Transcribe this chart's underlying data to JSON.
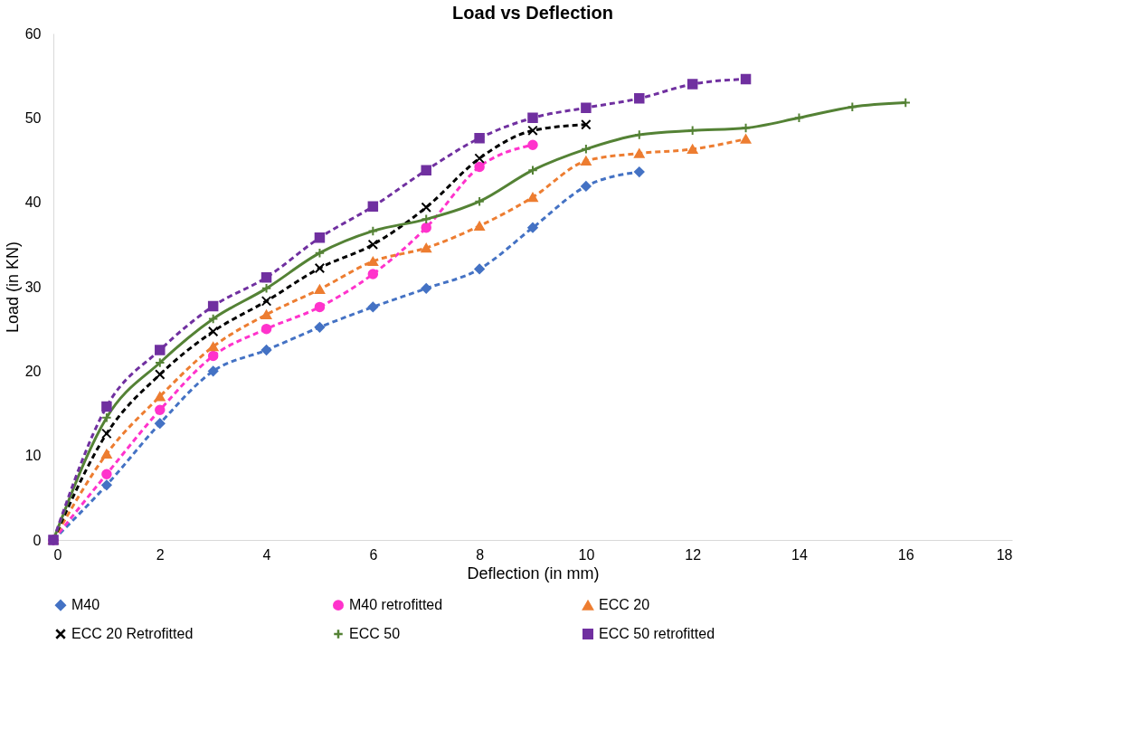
{
  "chart_data": {
    "type": "line",
    "title": "Load vs Deflection",
    "xlabel": "Deflection (in mm)",
    "ylabel": "Load (in KN)",
    "xlim": [
      0,
      18
    ],
    "xticks": [
      0,
      2,
      4,
      6,
      8,
      10,
      12,
      14,
      16,
      18
    ],
    "ylim": [
      0,
      60
    ],
    "yticks": [
      0,
      10,
      20,
      30,
      40,
      50,
      60
    ],
    "grid": false,
    "legend": "bottom",
    "series": [
      {
        "name": "M40",
        "color": "#4472c4",
        "marker": "diamond",
        "line_style": "dashed",
        "x": [
          0,
          1,
          2,
          3,
          4,
          5,
          6,
          7,
          8,
          9,
          10,
          11
        ],
        "values": [
          0,
          6.5,
          13.8,
          20,
          22.5,
          25.2,
          27.6,
          29.8,
          32.1,
          37,
          41.9,
          43.6
        ]
      },
      {
        "name": "M40 retrofitted",
        "color": "#ff33cc",
        "marker": "circle",
        "line_style": "dashed",
        "x": [
          0,
          1,
          2,
          3,
          4,
          5,
          6,
          7,
          8,
          9
        ],
        "values": [
          0,
          7.8,
          15.4,
          21.8,
          25,
          27.6,
          31.5,
          37,
          44.2,
          46.8
        ]
      },
      {
        "name": "ECC 20",
        "color": "#ed7d31",
        "marker": "triangle",
        "line_style": "dashed",
        "x": [
          0,
          1,
          2,
          3,
          4,
          5,
          6,
          7,
          8,
          9,
          10,
          11,
          12,
          13
        ],
        "values": [
          0,
          10.2,
          17,
          22.9,
          26.7,
          29.7,
          33,
          34.6,
          37.2,
          40.6,
          44.9,
          45.8,
          46.3,
          47.5
        ]
      },
      {
        "name": "ECC 20 Retrofitted",
        "color": "#000000",
        "marker": "cross",
        "line_style": "dashed",
        "x": [
          0,
          1,
          2,
          3,
          4,
          5,
          6,
          7,
          8,
          9,
          10
        ],
        "values": [
          0,
          12.6,
          19.6,
          24.7,
          28.3,
          32.2,
          35,
          39.4,
          45.2,
          48.5,
          49.2
        ]
      },
      {
        "name": "ECC 50",
        "color": "#548235",
        "marker": "plus",
        "line_style": "solid",
        "x": [
          0,
          1,
          2,
          3,
          4,
          5,
          6,
          7,
          8,
          9,
          10,
          11,
          12,
          13,
          14,
          15,
          16
        ],
        "values": [
          0,
          14.5,
          21,
          26.2,
          29.8,
          34,
          36.6,
          38,
          40.1,
          43.8,
          46.3,
          48,
          48.5,
          48.8,
          50,
          51.3,
          51.8
        ]
      },
      {
        "name": "ECC 50 retrofitted",
        "color": "#7030a0",
        "marker": "square",
        "line_style": "dashed",
        "x": [
          0,
          1,
          2,
          3,
          4,
          5,
          6,
          7,
          8,
          9,
          10,
          11,
          12,
          13
        ],
        "values": [
          0,
          15.8,
          22.5,
          27.7,
          31.1,
          35.8,
          39.5,
          43.8,
          47.6,
          50,
          51.2,
          52.3,
          54,
          54.6
        ]
      }
    ]
  }
}
